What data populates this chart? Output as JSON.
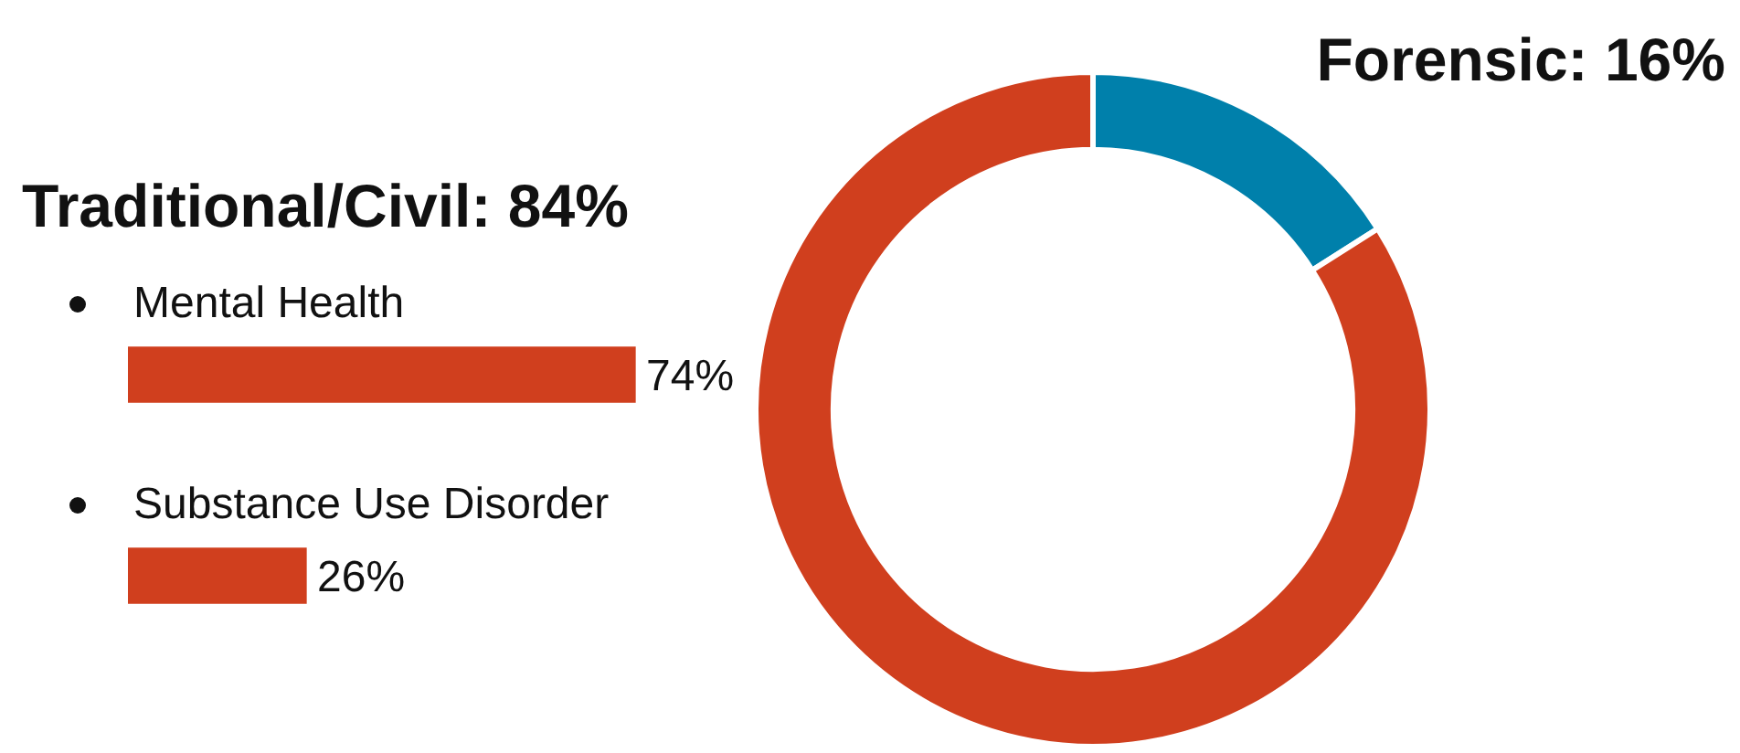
{
  "chart_data": [
    {
      "type": "donut",
      "categories": [
        "Forensic",
        "Traditional/Civil"
      ],
      "values": [
        16,
        84
      ],
      "colors": [
        "#0080ab",
        "#d03f1e"
      ],
      "value_labels": [
        "16%",
        "84%"
      ]
    },
    {
      "type": "bar",
      "orientation": "horizontal",
      "categories": [
        "Mental Health",
        "Substance Use Disorder"
      ],
      "values": [
        74,
        26
      ],
      "value_labels": [
        "74%",
        "26%"
      ],
      "color": "#d03f1e"
    }
  ]
}
